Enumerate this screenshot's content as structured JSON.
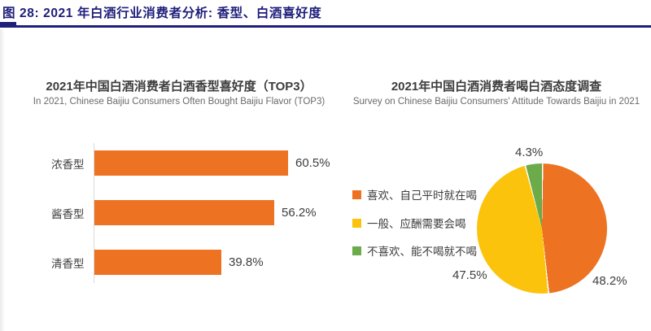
{
  "figure_caption": "图 28: 2021 年白酒行业消费者分析: 香型、白酒喜好度",
  "colors": {
    "caption_navy": "#1E1E7B",
    "bar_orange": "#ED7322",
    "pie_orange": "#ED7322",
    "pie_yellow": "#FCC30D",
    "pie_green": "#6BAB49",
    "text_dark": "#3d3d3d",
    "text_gray": "#6a6a6a"
  },
  "chart_data": [
    {
      "type": "bar",
      "orientation": "horizontal",
      "title": "2021年中国白酒消费者白酒香型喜好度（TOP3）",
      "subtitle": "In 2021, Chinese Baijiu Consumers Often Bought Baijiu Flavor (TOP3)",
      "categories": [
        "浓香型",
        "酱香型",
        "清香型"
      ],
      "values": [
        60.5,
        56.2,
        39.8
      ],
      "value_labels": [
        "60.5%",
        "56.2%",
        "39.8%"
      ],
      "bar_color": "#ED7322",
      "xlim": [
        0,
        70
      ],
      "grid": false,
      "value_label_position": "outside-end"
    },
    {
      "type": "pie",
      "title": "2021年中国白酒消费者喝白酒态度调查",
      "subtitle": "Survey on Chinese Baijiu Consumers' Attitude Towards Baijiu in 2021",
      "start_angle_deg": 0,
      "direction": "clockwise",
      "legend_position": "left",
      "slices": [
        {
          "label": "喜欢、自己平时就在喝",
          "value": 48.2,
          "value_label": "48.2%",
          "color": "#ED7322"
        },
        {
          "label": "一般、应酬需要会喝",
          "value": 47.5,
          "value_label": "47.5%",
          "color": "#FCC30D"
        },
        {
          "label": "不喜欢、能不喝就不喝",
          "value": 4.3,
          "value_label": "4.3%",
          "color": "#6BAB49"
        }
      ]
    }
  ]
}
